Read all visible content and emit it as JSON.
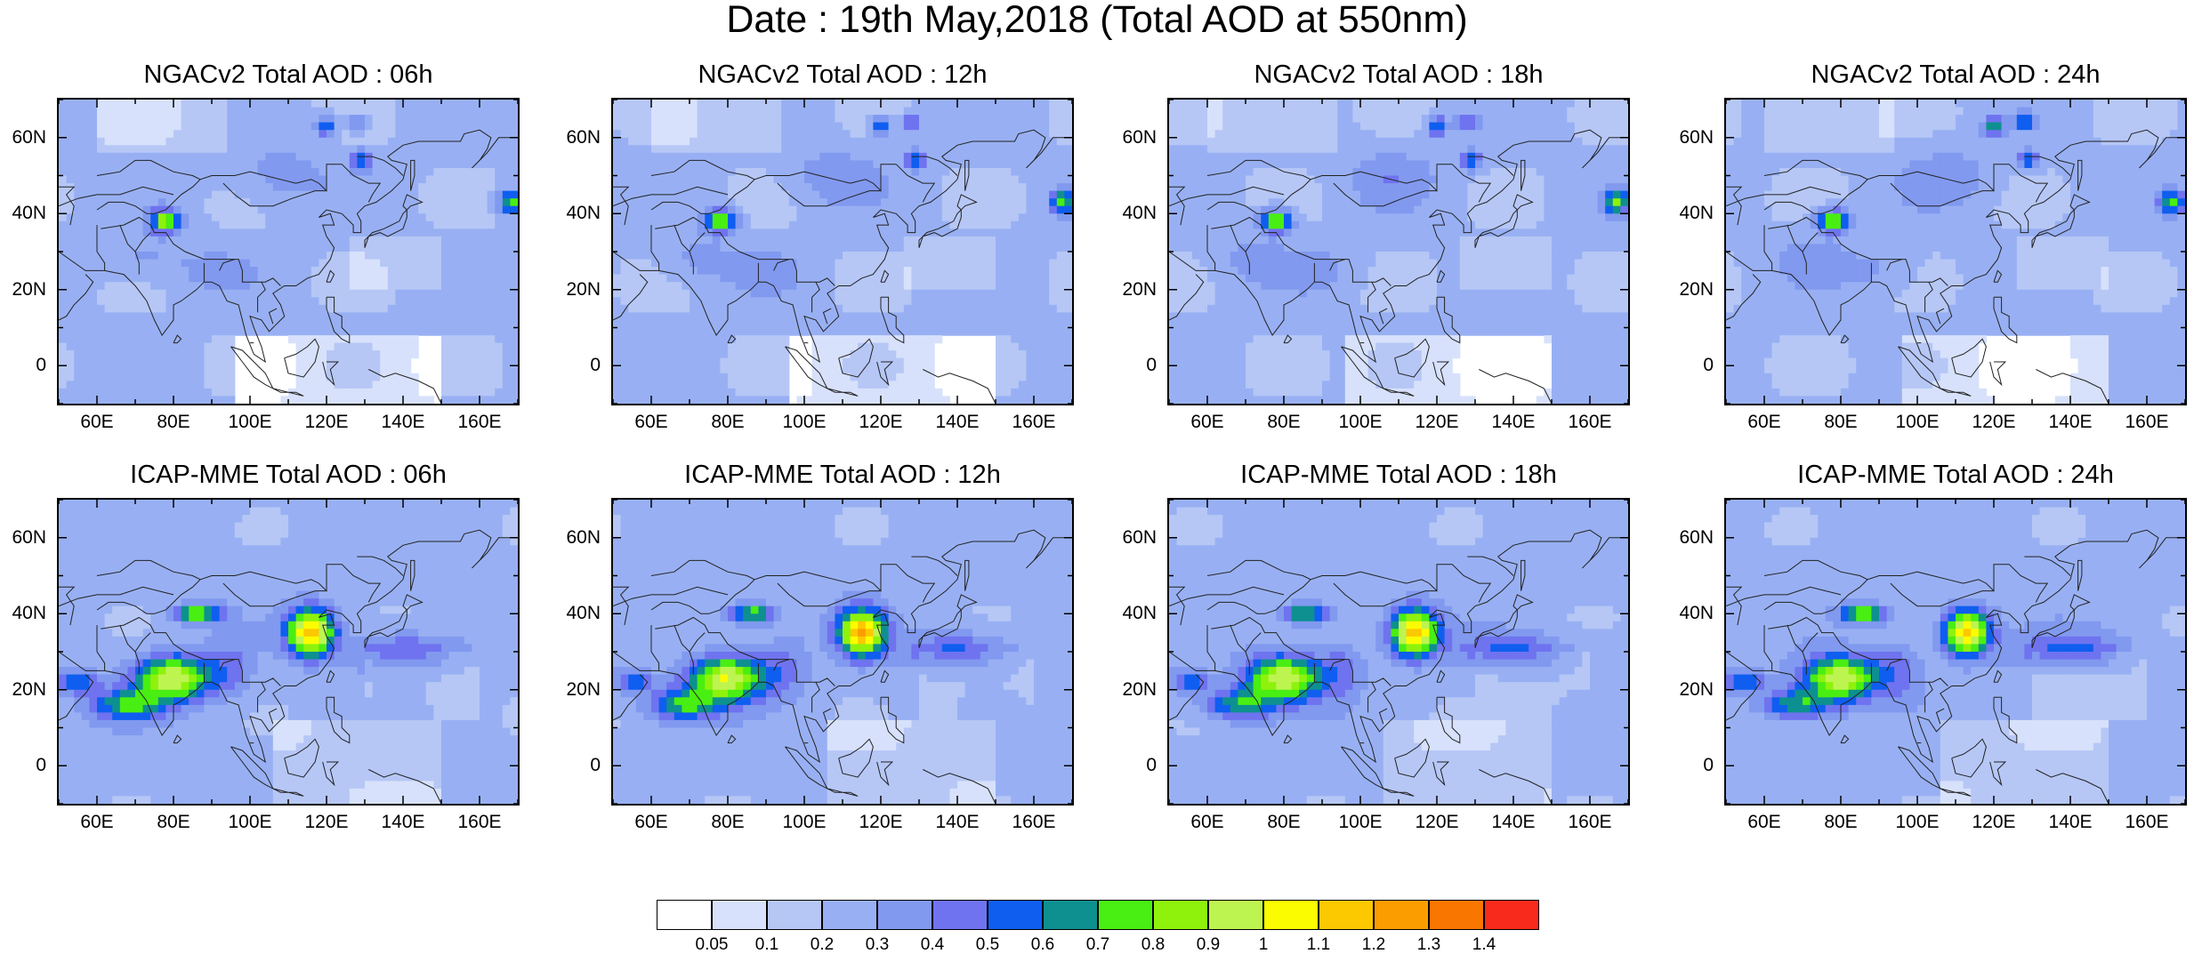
{
  "title": "Date : 19th May,2018 (Total AOD at 550nm)",
  "panels": [
    {
      "title": "NGACv2 Total AOD : 06h",
      "model": "NGACv2",
      "hour": "06h"
    },
    {
      "title": "NGACv2 Total AOD : 12h",
      "model": "NGACv2",
      "hour": "12h"
    },
    {
      "title": "NGACv2 Total AOD : 18h",
      "model": "NGACv2",
      "hour": "18h"
    },
    {
      "title": "NGACv2 Total AOD : 24h",
      "model": "NGACv2",
      "hour": "24h"
    },
    {
      "title": "ICAP-MME Total AOD : 06h",
      "model": "ICAP-MME",
      "hour": "06h"
    },
    {
      "title": "ICAP-MME Total AOD : 12h",
      "model": "ICAP-MME",
      "hour": "12h"
    },
    {
      "title": "ICAP-MME Total AOD : 18h",
      "model": "ICAP-MME",
      "hour": "18h"
    },
    {
      "title": "ICAP-MME Total AOD : 24h",
      "model": "ICAP-MME",
      "hour": "24h"
    }
  ],
  "axes": {
    "lon_range": [
      50,
      170
    ],
    "lat_range": [
      -10,
      70
    ],
    "lon_ticks": [
      {
        "value": 60,
        "label": "60E"
      },
      {
        "value": 80,
        "label": "80E"
      },
      {
        "value": 100,
        "label": "100E"
      },
      {
        "value": 120,
        "label": "120E"
      },
      {
        "value": 140,
        "label": "140E"
      },
      {
        "value": 160,
        "label": "160E"
      }
    ],
    "lat_ticks": [
      {
        "value": 60,
        "label": "60N"
      },
      {
        "value": 40,
        "label": "40N"
      },
      {
        "value": 20,
        "label": "20N"
      },
      {
        "value": 0,
        "label": "0"
      }
    ]
  },
  "colorbar": {
    "labels": [
      "0.05",
      "0.1",
      "0.2",
      "0.3",
      "0.4",
      "0.5",
      "0.6",
      "0.7",
      "0.8",
      "0.9",
      "1",
      "1.1",
      "1.2",
      "1.3",
      "1.4"
    ],
    "colors": [
      "#ffffff",
      "#d7e1fb",
      "#b6c7f6",
      "#98b0f3",
      "#8199ef",
      "#6f73ef",
      "#0f5ef0",
      "#0e9090",
      "#49ee12",
      "#8ef20c",
      "#bef450",
      "#fcfc00",
      "#fcc800",
      "#fb9d00",
      "#f97600",
      "#f82a1b"
    ]
  },
  "map_data": {
    "type": "gridded-field",
    "variable": "Total AOD at 550nm",
    "features": {
      "ngac_highs": [
        {
          "lon": 78,
          "lat": 38,
          "aod": 0.9
        },
        {
          "lon": 120,
          "lat": 63,
          "aod": 0.7
        },
        {
          "lon": 128,
          "lat": 64,
          "aod": 0.6
        },
        {
          "lon": 129,
          "lat": 54,
          "aod": 0.65
        },
        {
          "lon": 168,
          "lat": 43,
          "aod": 0.8
        }
      ],
      "icap_highs": [
        {
          "lon": 80,
          "lat": 24,
          "aod": 0.9
        },
        {
          "lon": 70,
          "lat": 16,
          "aod": 0.7
        },
        {
          "lon": 116,
          "lat": 35,
          "aod": 1.2
        },
        {
          "lon": 85,
          "lat": 40,
          "aod": 0.9
        },
        {
          "lon": 52,
          "lat": 22,
          "aod": 0.7
        }
      ]
    }
  }
}
